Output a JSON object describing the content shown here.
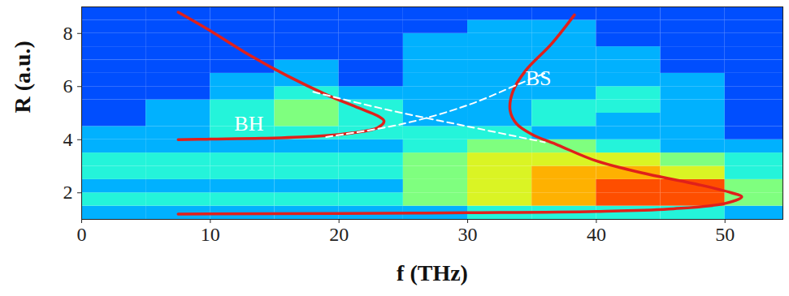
{
  "chart_data": {
    "type": "heatmap",
    "x_label": "f (THz)",
    "y_label": "R (a.u.)",
    "xlim": [
      0,
      54.5
    ],
    "ylim": [
      1,
      9
    ],
    "xticks": [
      0,
      10,
      20,
      30,
      40,
      50
    ],
    "yticks": [
      2,
      4,
      6,
      8
    ],
    "heatmap": {
      "x_bins": [
        0,
        5,
        10,
        15,
        20,
        25,
        30,
        35,
        40,
        45,
        50,
        55
      ],
      "y_bins": [
        1,
        1.5,
        2,
        2.5,
        3,
        3.5,
        4,
        4.5,
        5,
        5.5,
        6,
        6.5,
        7,
        7.5,
        8,
        8.5,
        9
      ],
      "zlim": [
        0,
        10
      ],
      "values": [
        [
          3,
          3,
          3,
          3,
          3,
          3,
          4,
          4,
          4,
          4,
          3
        ],
        [
          4,
          4,
          4,
          4,
          4,
          5,
          6,
          7,
          8,
          8,
          5
        ],
        [
          3,
          3,
          3,
          3,
          3,
          5,
          6,
          7,
          8,
          8,
          5
        ],
        [
          4,
          4,
          4,
          4,
          4,
          5,
          6,
          7,
          7,
          6,
          4
        ],
        [
          4,
          4,
          4,
          4,
          4,
          5,
          6,
          6,
          6,
          5,
          4
        ],
        [
          3,
          3,
          3,
          3,
          3,
          4,
          5,
          5,
          4,
          3,
          3
        ],
        [
          3,
          3,
          4,
          4,
          4,
          4,
          4,
          3,
          3,
          3,
          2
        ],
        [
          2,
          3,
          4,
          5,
          4,
          3,
          3,
          4,
          3,
          3,
          2
        ],
        [
          2,
          3,
          4,
          5,
          4,
          3,
          3,
          4,
          4,
          3,
          2
        ],
        [
          2,
          2,
          3,
          4,
          3,
          3,
          3,
          3,
          4,
          3,
          2
        ],
        [
          2,
          2,
          3,
          3,
          2,
          3,
          3,
          3,
          3,
          3,
          2
        ],
        [
          2,
          2,
          2,
          3,
          2,
          3,
          3,
          3,
          3,
          2,
          2
        ],
        [
          2,
          2,
          2,
          2,
          2,
          3,
          3,
          3,
          3,
          2,
          2
        ],
        [
          2,
          2,
          2,
          2,
          2,
          3,
          3,
          3,
          2,
          2,
          2
        ],
        [
          2,
          2,
          2,
          2,
          2,
          2,
          3,
          3,
          2,
          2,
          2
        ],
        [
          2,
          2,
          2,
          2,
          2,
          2,
          2,
          2,
          2,
          2,
          2
        ]
      ]
    },
    "series": [
      {
        "color": "#e0201b",
        "line_style": "solid",
        "x": [
          7.5,
          10,
          13,
          16,
          19,
          21.5,
          23,
          23.5,
          23,
          21,
          18,
          14,
          10,
          7.5
        ],
        "y": [
          8.8,
          8.1,
          7.2,
          6.4,
          5.7,
          5.2,
          4.9,
          4.7,
          4.45,
          4.25,
          4.12,
          4.05,
          4.02,
          4.0
        ]
      },
      {
        "color": "#e0201b",
        "line_style": "solid",
        "x": [
          38.3,
          36.5,
          34.5,
          33.5,
          33.3,
          33.8,
          35,
          37,
          40,
          44,
          48,
          50.5,
          51.3,
          50,
          46,
          40,
          30,
          20,
          7.5
        ],
        "y": [
          8.7,
          7.6,
          6.6,
          5.8,
          5.1,
          4.6,
          4.2,
          3.8,
          3.2,
          2.7,
          2.3,
          2.0,
          1.85,
          1.6,
          1.4,
          1.3,
          1.25,
          1.22,
          1.2
        ]
      },
      {
        "color": "#ffffff",
        "line_style": "dashed",
        "x": [
          19,
          25,
          30,
          34,
          36
        ],
        "y": [
          4.1,
          4.6,
          5.3,
          6.1,
          6.5
        ]
      },
      {
        "color": "#ffffff",
        "line_style": "dashed",
        "x": [
          18,
          24,
          30,
          36
        ],
        "y": [
          5.8,
          5.1,
          4.5,
          3.9
        ]
      }
    ],
    "annotations": [
      {
        "text": "BH",
        "x": 13,
        "y": 4.6
      },
      {
        "text": "BS",
        "x": 35.5,
        "y": 6.3
      }
    ]
  }
}
